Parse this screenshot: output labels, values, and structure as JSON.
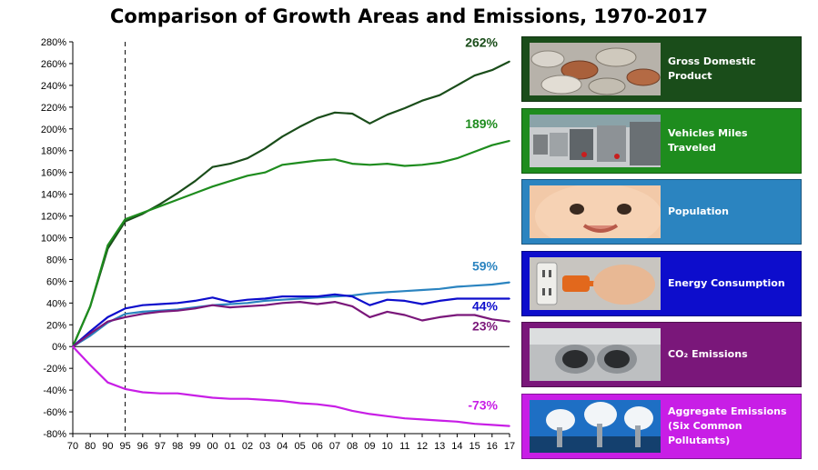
{
  "title": "Comparison of Growth Areas and Emissions, 1970-2017",
  "panels": [
    {
      "label": "Gross Domestic Product",
      "color": "#1a4d1a",
      "icon": "coins-icon"
    },
    {
      "label": "Vehicles Miles Traveled",
      "color": "#1e8c1e",
      "icon": "traffic-icon"
    },
    {
      "label": "Population",
      "color": "#2b84c0",
      "icon": "baby-face-icon"
    },
    {
      "label": "Energy Consumption",
      "color": "#0d0dcc",
      "icon": "power-plug-icon"
    },
    {
      "label": "CO₂ Emissions",
      "color": "#7a177a",
      "icon": "exhaust-pipe-icon"
    },
    {
      "label": "Aggregate Emissions",
      "label2": "(Six Common Pollutants)",
      "color": "#c81ee6",
      "icon": "smokestacks-icon"
    }
  ],
  "chart_data": {
    "type": "line",
    "title": "Comparison of Growth Areas and Emissions, 1970-2017",
    "x": [
      "70",
      "80",
      "90",
      "95",
      "96",
      "97",
      "98",
      "99",
      "00",
      "01",
      "02",
      "03",
      "04",
      "05",
      "06",
      "07",
      "08",
      "09",
      "10",
      "11",
      "12",
      "13",
      "14",
      "15",
      "16",
      "17"
    ],
    "ylim": [
      -80,
      280
    ],
    "yticks": [
      "-80%",
      "-60%",
      "-40%",
      "-20%",
      "0%",
      "20%",
      "40%",
      "60%",
      "80%",
      "100%",
      "120%",
      "140%",
      "160%",
      "180%",
      "200%",
      "220%",
      "240%",
      "260%",
      "280%"
    ],
    "ytick_values": [
      -80,
      -60,
      -40,
      -20,
      0,
      20,
      40,
      60,
      80,
      100,
      120,
      140,
      160,
      180,
      200,
      220,
      240,
      260,
      280
    ],
    "reference_line_x": "95",
    "series": [
      {
        "name": "Gross Domestic Product",
        "color": "#1a4d1a",
        "end_label": "262%",
        "values": [
          0,
          37,
          90,
          115,
          122,
          131,
          141,
          152,
          165,
          168,
          173,
          182,
          193,
          202,
          210,
          215,
          214,
          205,
          213,
          219,
          226,
          231,
          240,
          249,
          254,
          262
        ]
      },
      {
        "name": "Vehicles Miles Traveled",
        "color": "#1e8c1e",
        "end_label": "189%",
        "values": [
          0,
          37,
          93,
          117,
          123,
          129,
          135,
          141,
          147,
          152,
          157,
          160,
          167,
          169,
          171,
          172,
          168,
          167,
          168,
          166,
          167,
          169,
          173,
          179,
          185,
          189
        ]
      },
      {
        "name": "Population",
        "color": "#2b84c0",
        "end_label": "59%",
        "values": [
          0,
          10,
          22,
          30,
          32,
          33,
          34,
          36,
          38,
          39,
          40,
          42,
          43,
          44,
          45,
          46,
          47,
          49,
          50,
          51,
          52,
          53,
          55,
          56,
          57,
          59
        ]
      },
      {
        "name": "Energy Consumption",
        "color": "#0d0dcc",
        "end_label": "44%",
        "values": [
          0,
          14,
          27,
          35,
          38,
          39,
          40,
          42,
          45,
          41,
          43,
          44,
          46,
          46,
          46,
          48,
          46,
          38,
          43,
          42,
          39,
          42,
          44,
          44,
          44,
          44
        ]
      },
      {
        "name": "CO₂ Emissions",
        "color": "#7a177a",
        "end_label": "23%",
        "values": [
          0,
          12,
          23,
          27,
          30,
          32,
          33,
          35,
          38,
          36,
          37,
          38,
          40,
          41,
          39,
          41,
          37,
          27,
          32,
          29,
          24,
          27,
          29,
          29,
          25,
          23
        ]
      },
      {
        "name": "Aggregate Emissions",
        "color": "#c81ee6",
        "end_label": "-73%",
        "values": [
          0,
          -17,
          -33,
          -39,
          -42,
          -43,
          -43,
          -45,
          -47,
          -48,
          -48,
          -49,
          -50,
          -52,
          -53,
          -55,
          -59,
          -62,
          -64,
          -66,
          -67,
          -68,
          -69,
          -71,
          -72,
          -73
        ]
      }
    ]
  }
}
